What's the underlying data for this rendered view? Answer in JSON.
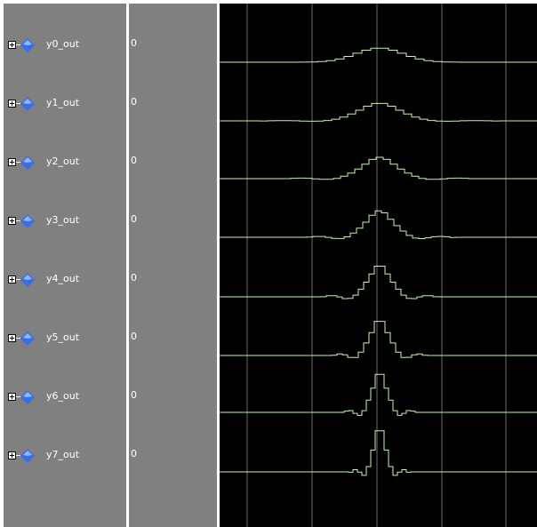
{
  "signals": [
    {
      "name": "y0_out",
      "value": "0"
    },
    {
      "name": "y1_out",
      "value": "0"
    },
    {
      "name": "y2_out",
      "value": "0"
    },
    {
      "name": "y3_out",
      "value": "0"
    },
    {
      "name": "y4_out",
      "value": "0"
    },
    {
      "name": "y5_out",
      "value": "0"
    },
    {
      "name": "y6_out",
      "value": "0"
    },
    {
      "name": "y7_out",
      "value": "0"
    }
  ],
  "colors": {
    "pane_background": "#808080",
    "wave_background": "#000000",
    "waveform": "#c8f0b4",
    "grid": "#6e6e6e",
    "diamond": "#3a6ee8"
  },
  "icons": {
    "expand": "plus-box-icon",
    "signal": "blue-diamond-icon"
  }
}
